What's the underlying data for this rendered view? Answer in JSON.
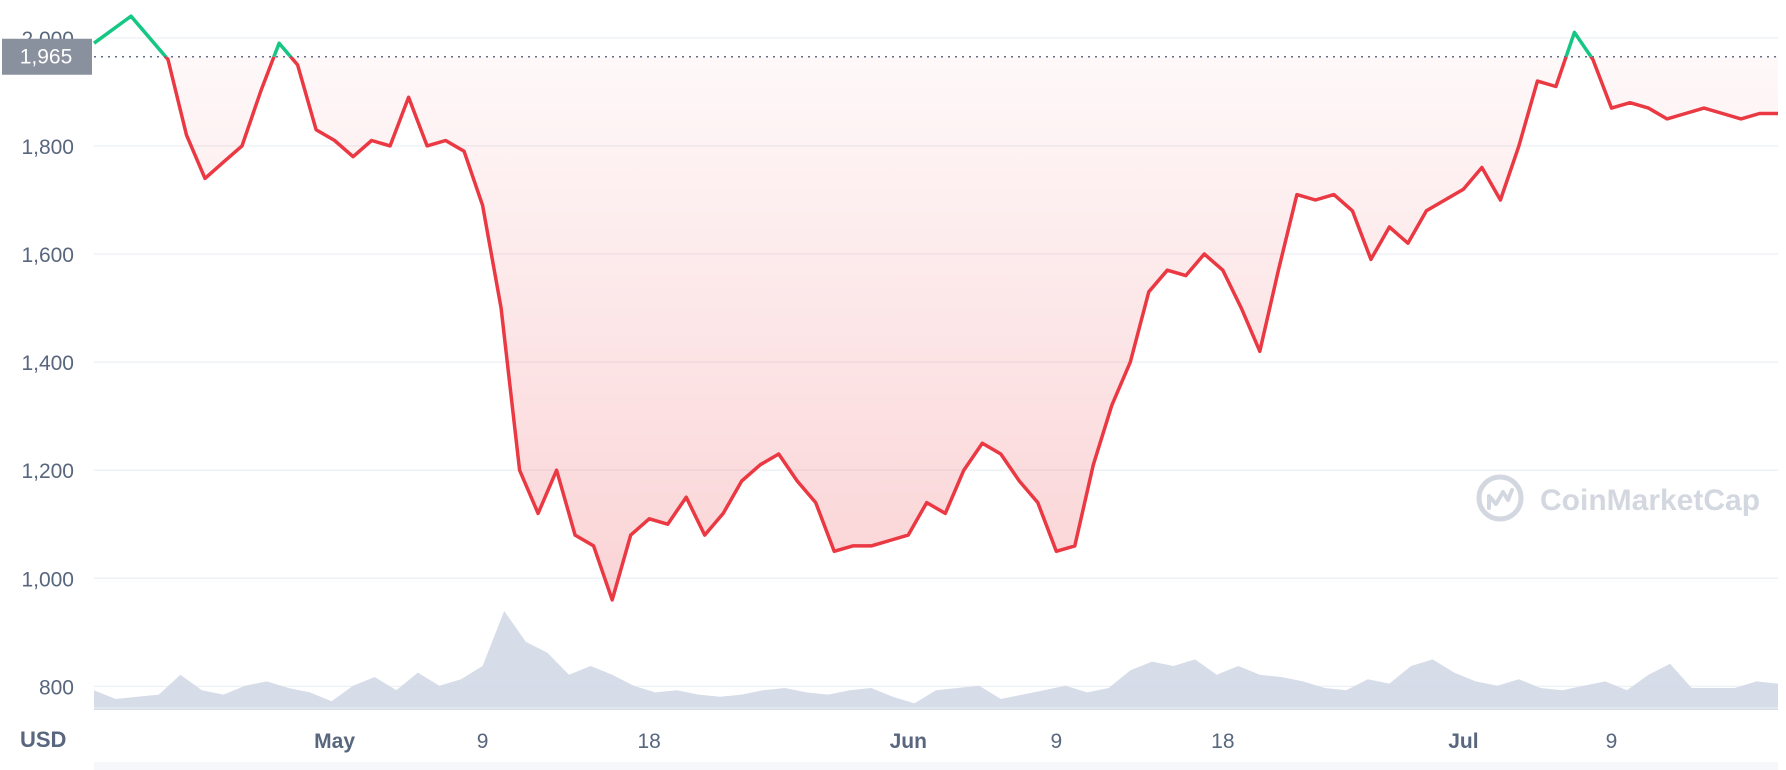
{
  "chart_data": {
    "type": "line",
    "unit_label": "USD",
    "watermark": "CoinMarketCap",
    "reference_line": {
      "value": 1965,
      "label": "1,965"
    },
    "ylim": [
      760,
      2070
    ],
    "y_ticks": [
      {
        "value": 800,
        "label": "800"
      },
      {
        "value": 1000,
        "label": "1,000"
      },
      {
        "value": 1200,
        "label": "1,200"
      },
      {
        "value": 1400,
        "label": "1,400"
      },
      {
        "value": 1600,
        "label": "1,600"
      },
      {
        "value": 1800,
        "label": "1,800"
      },
      {
        "value": 2000,
        "label": "2,000"
      }
    ],
    "x_range": [
      "2022-04-18",
      "2022-07-18"
    ],
    "x_ticks": [
      {
        "date": "2022-05-01",
        "label": "May",
        "major": true
      },
      {
        "date": "2022-05-09",
        "label": "9",
        "major": false
      },
      {
        "date": "2022-05-18",
        "label": "18",
        "major": false
      },
      {
        "date": "2022-06-01",
        "label": "Jun",
        "major": true
      },
      {
        "date": "2022-06-09",
        "label": "9",
        "major": false
      },
      {
        "date": "2022-06-18",
        "label": "18",
        "major": false
      },
      {
        "date": "2022-07-01",
        "label": "Jul",
        "major": true
      },
      {
        "date": "2022-07-09",
        "label": "9",
        "major": false
      }
    ],
    "grid": true,
    "colors": {
      "above": "#16c784",
      "below": "#ea3943",
      "volume": "#cfd6e4",
      "grid": "#eff2f5"
    },
    "series": [
      {
        "x": [
          "2022-04-18",
          "2022-04-20",
          "2022-04-21",
          "2022-04-22",
          "2022-04-23",
          "2022-04-24",
          "2022-04-25",
          "2022-04-26",
          "2022-04-27",
          "2022-04-28",
          "2022-04-29",
          "2022-04-30",
          "2022-05-01",
          "2022-05-02",
          "2022-05-03",
          "2022-05-04",
          "2022-05-05",
          "2022-05-06",
          "2022-05-07",
          "2022-05-08",
          "2022-05-09",
          "2022-05-10",
          "2022-05-11",
          "2022-05-12",
          "2022-05-13",
          "2022-05-14",
          "2022-05-15",
          "2022-05-16",
          "2022-05-17",
          "2022-05-18",
          "2022-05-19",
          "2022-05-20",
          "2022-05-21",
          "2022-05-22",
          "2022-05-23",
          "2022-05-24",
          "2022-05-25",
          "2022-05-26",
          "2022-05-27",
          "2022-05-28",
          "2022-05-29",
          "2022-05-30",
          "2022-05-31",
          "2022-06-01",
          "2022-06-02",
          "2022-06-03",
          "2022-06-04",
          "2022-06-05",
          "2022-06-06",
          "2022-06-07",
          "2022-06-08",
          "2022-06-09",
          "2022-06-10",
          "2022-06-11",
          "2022-06-12",
          "2022-06-13",
          "2022-06-14",
          "2022-06-15",
          "2022-06-16",
          "2022-06-17",
          "2022-06-18",
          "2022-06-19",
          "2022-06-20",
          "2022-06-21",
          "2022-06-22",
          "2022-06-23",
          "2022-06-24",
          "2022-06-25",
          "2022-06-26",
          "2022-06-27",
          "2022-06-28",
          "2022-06-29",
          "2022-06-30",
          "2022-07-01",
          "2022-07-02",
          "2022-07-03",
          "2022-07-04",
          "2022-07-05",
          "2022-07-06",
          "2022-07-07",
          "2022-07-08",
          "2022-07-09",
          "2022-07-10",
          "2022-07-11",
          "2022-07-12",
          "2022-07-13",
          "2022-07-14",
          "2022-07-15",
          "2022-07-16",
          "2022-07-17",
          "2022-07-18"
        ],
        "y": [
          1990,
          2040,
          2000,
          1960,
          1820,
          1740,
          1770,
          1800,
          1900,
          1990,
          1950,
          1830,
          1810,
          1780,
          1810,
          1800,
          1890,
          1800,
          1810,
          1790,
          1690,
          1500,
          1200,
          1120,
          1200,
          1080,
          1060,
          960,
          1080,
          1110,
          1100,
          1150,
          1080,
          1120,
          1180,
          1210,
          1230,
          1180,
          1140,
          1050,
          1060,
          1060,
          1070,
          1080,
          1140,
          1120,
          1200,
          1250,
          1230,
          1180,
          1140,
          1050,
          1060,
          1210,
          1320,
          1400,
          1530,
          1570,
          1560,
          1600,
          1570,
          1500,
          1420,
          1570,
          1710,
          1700,
          1710,
          1680,
          1590,
          1650,
          1620,
          1680,
          1700,
          1720,
          1760,
          1700,
          1800,
          1920,
          1910,
          2010,
          1960,
          1870,
          1880,
          1870,
          1850,
          1860,
          1870,
          1860,
          1850,
          1860,
          1860
        ]
      }
    ],
    "volume": [
      0.18,
      0.1,
      0.12,
      0.14,
      0.32,
      0.18,
      0.14,
      0.22,
      0.26,
      0.2,
      0.16,
      0.08,
      0.22,
      0.3,
      0.18,
      0.34,
      0.22,
      0.28,
      0.4,
      0.9,
      0.62,
      0.52,
      0.32,
      0.4,
      0.32,
      0.22,
      0.16,
      0.18,
      0.14,
      0.12,
      0.14,
      0.18,
      0.2,
      0.16,
      0.14,
      0.18,
      0.2,
      0.12,
      0.06,
      0.18,
      0.2,
      0.22,
      0.1,
      0.14,
      0.18,
      0.22,
      0.16,
      0.2,
      0.36,
      0.44,
      0.4,
      0.46,
      0.32,
      0.4,
      0.32,
      0.3,
      0.26,
      0.2,
      0.18,
      0.28,
      0.24,
      0.4,
      0.46,
      0.34,
      0.26,
      0.22,
      0.28,
      0.2,
      0.18,
      0.22,
      0.26,
      0.18,
      0.32,
      0.42,
      0.2,
      0.2,
      0.2,
      0.26,
      0.24
    ]
  }
}
